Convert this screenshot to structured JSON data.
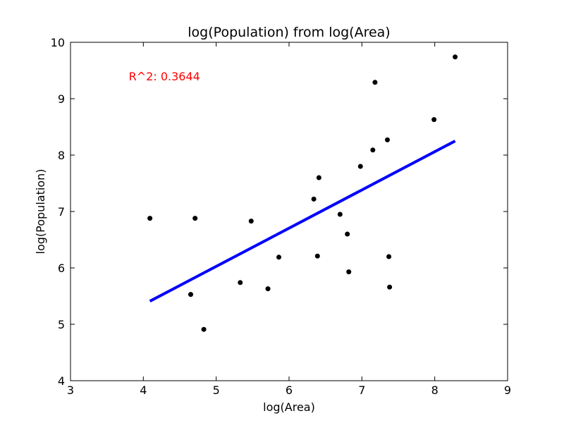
{
  "chart_data": {
    "type": "scatter",
    "title": "log(Population) from log(Area)",
    "xlabel": "log(Area)",
    "ylabel": "log(Population)",
    "xlim": [
      3,
      9
    ],
    "ylim": [
      4,
      10
    ],
    "xticks": [
      "3",
      "4",
      "5",
      "6",
      "7",
      "8",
      "9"
    ],
    "yticks": [
      "4",
      "5",
      "6",
      "7",
      "8",
      "9",
      "10"
    ],
    "grid": false,
    "points": [
      {
        "x": 4.09,
        "y": 6.88
      },
      {
        "x": 4.65,
        "y": 5.53
      },
      {
        "x": 4.71,
        "y": 6.88
      },
      {
        "x": 4.83,
        "y": 4.91
      },
      {
        "x": 5.33,
        "y": 5.74
      },
      {
        "x": 5.48,
        "y": 6.83
      },
      {
        "x": 5.71,
        "y": 5.63
      },
      {
        "x": 5.86,
        "y": 6.19
      },
      {
        "x": 6.34,
        "y": 7.22
      },
      {
        "x": 6.39,
        "y": 6.21
      },
      {
        "x": 6.41,
        "y": 7.6
      },
      {
        "x": 6.7,
        "y": 6.95
      },
      {
        "x": 6.8,
        "y": 6.6
      },
      {
        "x": 6.82,
        "y": 5.93
      },
      {
        "x": 6.98,
        "y": 7.8
      },
      {
        "x": 7.15,
        "y": 8.09
      },
      {
        "x": 7.18,
        "y": 9.29
      },
      {
        "x": 7.35,
        "y": 8.27
      },
      {
        "x": 7.37,
        "y": 6.2
      },
      {
        "x": 7.38,
        "y": 5.66
      },
      {
        "x": 7.99,
        "y": 8.63
      },
      {
        "x": 8.28,
        "y": 9.74
      }
    ],
    "fit_line": {
      "x": [
        4.09,
        8.28
      ],
      "y": [
        5.41,
        8.25
      ]
    },
    "annotation": {
      "text": "R^2: 0.3644",
      "x": 3.8,
      "y": 9.4
    },
    "colors": {
      "points": "#000000",
      "fit_line": "#0000ff",
      "annotation": "#ff0000",
      "axes": "#000000",
      "background": "#ffffff"
    }
  }
}
